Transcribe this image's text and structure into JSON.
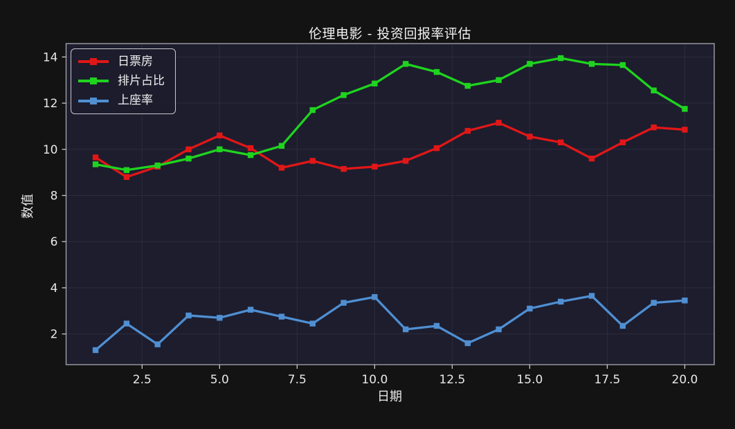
{
  "title": "伦理电影 - 投资回报率评估",
  "chart_data": {
    "type": "line",
    "x": [
      1,
      2,
      3,
      4,
      5,
      6,
      7,
      8,
      9,
      10,
      11,
      12,
      13,
      14,
      15,
      16,
      17,
      18,
      19,
      20
    ],
    "series": [
      {
        "name": "日票房",
        "color": "#e11717",
        "values": [
          9.65,
          8.8,
          9.25,
          10.0,
          10.6,
          10.05,
          9.2,
          9.5,
          9.15,
          9.25,
          9.5,
          10.05,
          10.8,
          11.15,
          10.55,
          10.3,
          9.6,
          10.3,
          10.95,
          10.85
        ]
      },
      {
        "name": "排片占比",
        "color": "#1fd41f",
        "values": [
          9.35,
          9.1,
          9.3,
          9.6,
          10.0,
          9.75,
          10.15,
          11.7,
          12.35,
          12.85,
          13.7,
          13.35,
          12.75,
          13.0,
          13.7,
          13.95,
          13.7,
          13.65,
          12.55,
          11.75
        ]
      },
      {
        "name": "上座率",
        "color": "#4f8fd2",
        "values": [
          1.3,
          2.45,
          1.55,
          2.8,
          2.7,
          3.05,
          2.75,
          2.45,
          3.35,
          3.6,
          2.2,
          2.35,
          1.6,
          2.2,
          3.1,
          3.4,
          3.65,
          2.35,
          3.35,
          3.45
        ]
      }
    ],
    "title": "伦理电影 - 投资回报率评估",
    "xlabel": "日期",
    "ylabel": "数值",
    "xticks": [
      2.5,
      5.0,
      7.5,
      10.0,
      12.5,
      15.0,
      17.5,
      20.0
    ],
    "xtick_labels": [
      "2.5",
      "5.0",
      "7.5",
      "10.0",
      "12.5",
      "15.0",
      "17.5",
      "20.0"
    ],
    "yticks": [
      2,
      4,
      6,
      8,
      10,
      12,
      14
    ],
    "ytick_labels": [
      "2",
      "4",
      "6",
      "8",
      "10",
      "12",
      "14"
    ],
    "xlim": [
      0.05,
      20.95
    ],
    "ylim": [
      0.67,
      14.58
    ],
    "grid": true,
    "legend_position": "upper left",
    "marker": "square"
  },
  "colors": {
    "page_background": "#131313",
    "plot_background": "#1d1d2e",
    "gridline": "#2c2c3d",
    "spine": "#a9a9b2",
    "tick": "#c9c9c9",
    "tick_label": "#e8e8e8",
    "title_text": "#f2f2f2"
  }
}
